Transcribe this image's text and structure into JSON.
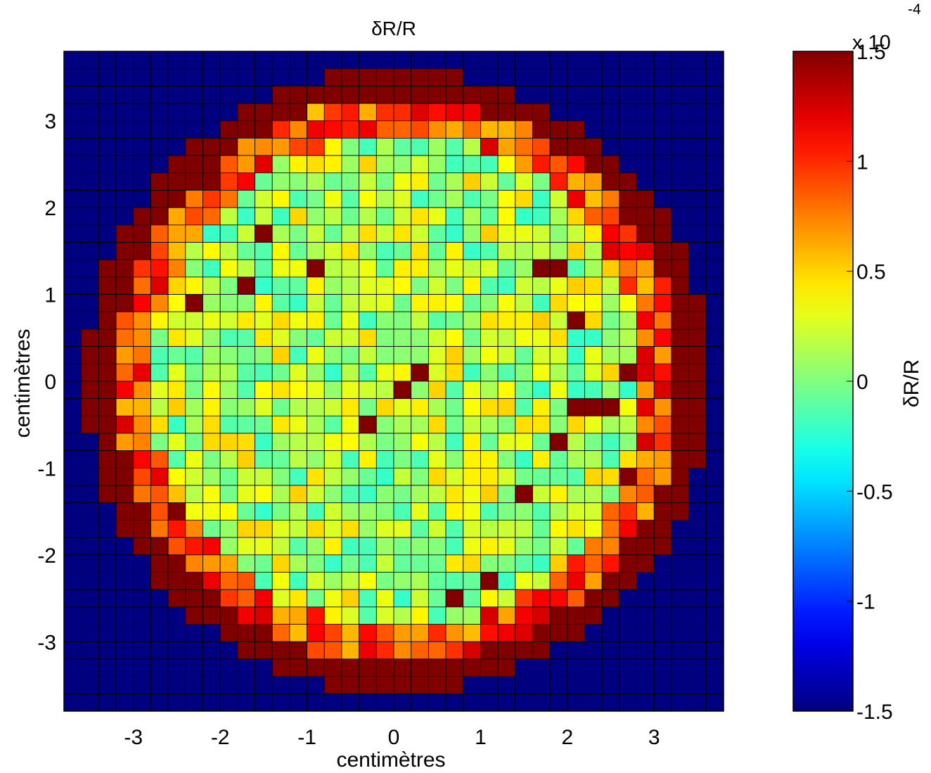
{
  "chart_data": {
    "type": "heatmap",
    "title": "δR/R",
    "xlabel": "centimètres",
    "ylabel": "centimètres",
    "xlim": [
      -3.8,
      3.8
    ],
    "ylim": [
      -3.8,
      3.8
    ],
    "grid_size": 38,
    "xticks": [
      -3,
      -2,
      -1,
      0,
      1,
      2,
      3
    ],
    "yticks": [
      3,
      2,
      1,
      0,
      -1,
      -2,
      -3
    ],
    "colorbar": {
      "label": "δR/R",
      "exponent_label": "x 10",
      "exponent": "-4",
      "range": [
        -1.5,
        1.5
      ],
      "ticks": [
        1.5,
        1,
        0.5,
        0,
        -0.5,
        -1,
        -1.5
      ],
      "tick_labels": [
        "1.5",
        "1",
        "0.5",
        "0",
        "-0.5",
        "-1",
        "-1.5"
      ],
      "colormap": "jet"
    },
    "background_value": -1.5,
    "rim_value": 1.5,
    "disk_center": [
      0.05,
      0.0
    ],
    "disk_radius": 3.6,
    "interior_mean": 0.15,
    "hotspot_value": 1.5,
    "hotspots": [
      [
        -2.15,
        2.35
      ],
      [
        -1.5,
        1.75
      ],
      [
        -0.85,
        1.35
      ],
      [
        -1.75,
        1.1
      ],
      [
        -2.35,
        0.95
      ],
      [
        1.65,
        1.35
      ],
      [
        2.1,
        0.75
      ],
      [
        2.65,
        0.15
      ],
      [
        0.15,
        -0.1
      ],
      [
        -0.3,
        -0.5
      ],
      [
        2.2,
        -0.25
      ],
      [
        1.9,
        -0.65
      ],
      [
        2.65,
        -1.05
      ],
      [
        1.5,
        -1.25
      ],
      [
        1.1,
        -2.25
      ],
      [
        0.75,
        -2.45
      ],
      [
        -2.55,
        -1.45
      ],
      [
        0.35,
        0.15
      ],
      [
        1.95,
        1.35
      ],
      [
        2.45,
        -0.25
      ]
    ]
  }
}
